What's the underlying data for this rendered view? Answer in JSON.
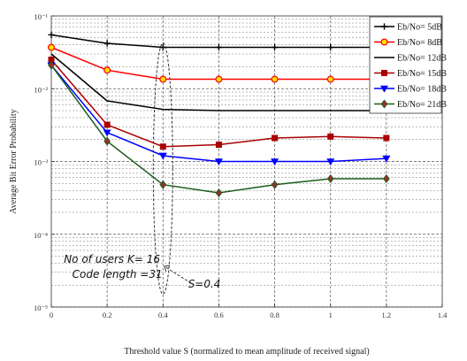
{
  "chart_data": {
    "type": "line",
    "title": "",
    "xlabel": "Threshold value S (normalized to mean amplitude of received signal)",
    "ylabel": "Average Bit Error Probability",
    "xlim": [
      0,
      1.4
    ],
    "ylim": [
      1e-05,
      0.1
    ],
    "yscale": "log",
    "xticks": [
      0,
      0.2,
      0.4,
      0.6,
      0.8,
      1,
      1.2,
      1.4
    ],
    "xtick_labels": [
      "0",
      "0.2",
      "0.4",
      "0.6",
      "0.8",
      "1",
      "1.2",
      "1.4"
    ],
    "yticks": [
      1e-05,
      0.0001,
      0.001,
      0.01,
      0.1
    ],
    "ytick_labels": [
      "10⁻⁵",
      "10⁻⁴",
      "10⁻³",
      "10⁻²",
      "10⁻¹"
    ],
    "grid": true,
    "legend_position": "top-right",
    "x": [
      0,
      0.2,
      0.4,
      0.6,
      0.8,
      1,
      1.2
    ],
    "series": [
      {
        "name": "Eb/No= 5dB",
        "color": "#000000",
        "marker": "plus",
        "values": [
          0.055,
          0.042,
          0.037,
          0.037,
          0.037,
          0.037,
          0.037
        ]
      },
      {
        "name": "Eb/No= 8dB",
        "color": "#ff0000",
        "marker": "circle",
        "values": [
          0.037,
          0.018,
          0.0135,
          0.0135,
          0.0135,
          0.0135,
          0.0135
        ]
      },
      {
        "name": "Eb/No= 12dB",
        "color": "#000000",
        "marker": "none",
        "values": [
          0.03,
          0.0068,
          0.0052,
          0.005,
          0.005,
          0.005,
          0.005
        ]
      },
      {
        "name": "Eb/No= 15dB",
        "color": "#aa0000",
        "marker": "square",
        "values": [
          0.025,
          0.0032,
          0.0016,
          0.0017,
          0.0021,
          0.0022,
          0.0021
        ]
      },
      {
        "name": "Eb/No= 18dB",
        "color": "#0000ff",
        "marker": "triangle",
        "values": [
          0.021,
          0.0025,
          0.0012,
          0.001,
          0.001,
          0.001,
          0.0011
        ]
      },
      {
        "name": "Eb/No= 21dB",
        "color": "#1a5c1a",
        "marker": "diamond",
        "values": [
          0.021,
          0.0019,
          0.00048,
          0.00037,
          0.00048,
          0.00058,
          0.00058
        ]
      }
    ],
    "annotations": {
      "users_text": "No of users K= 16",
      "code_text": "Code length =31",
      "threshold_text": "S=0.4"
    }
  }
}
